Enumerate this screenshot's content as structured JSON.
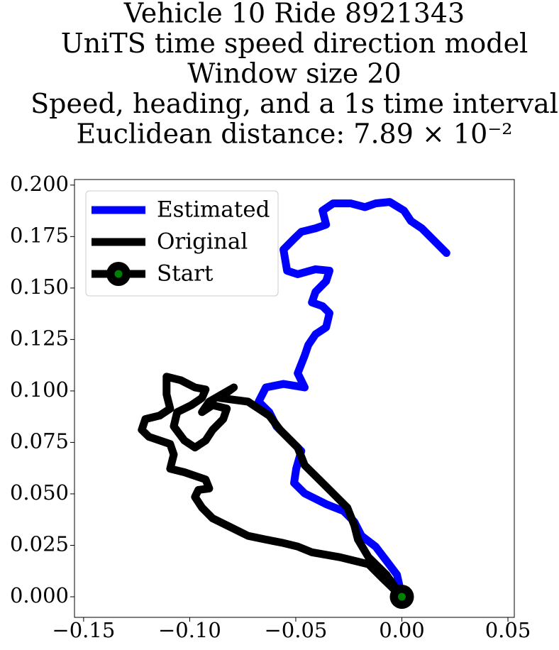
{
  "chart_data": {
    "type": "line",
    "title": [
      "Vehicle 10 Ride 8921343",
      "UniTS time speed direction model",
      "Window size 20",
      "Speed, heading, and a 1s time interval",
      "Euclidean distance: 7.89 × 10⁻²"
    ],
    "series": [
      {
        "name": "Estimated",
        "color": "#0000ff",
        "x": [
          0,
          -0.0023,
          -0.0073,
          -0.0124,
          -0.019,
          -0.0224,
          -0.0274,
          -0.0357,
          -0.0458,
          -0.0508,
          -0.0498,
          -0.0474,
          -0.0524,
          -0.0591,
          -0.0625,
          -0.0675,
          -0.0641,
          -0.0558,
          -0.0458,
          -0.0491,
          -0.0458,
          -0.0441,
          -0.0407,
          -0.0357,
          -0.0341,
          -0.0374,
          -0.0424,
          -0.0407,
          -0.0357,
          -0.0341,
          -0.0407,
          -0.0491,
          -0.0541,
          -0.0558,
          -0.0508,
          -0.0474,
          -0.0407,
          -0.0357,
          -0.0374,
          -0.0324,
          -0.024,
          -0.0174,
          -0.0124,
          -0.0057,
          0.001,
          0.0043,
          0.0094,
          0.016,
          0.021
        ],
        "y": [
          0,
          0.0107,
          0.0175,
          0.0244,
          0.0296,
          0.0364,
          0.0416,
          0.045,
          0.0502,
          0.0553,
          0.0622,
          0.0708,
          0.0759,
          0.0828,
          0.0897,
          0.0948,
          0.1017,
          0.1034,
          0.1017,
          0.1086,
          0.1172,
          0.1223,
          0.1275,
          0.1309,
          0.1378,
          0.1412,
          0.143,
          0.1481,
          0.1533,
          0.1584,
          0.1591,
          0.1567,
          0.1584,
          0.1687,
          0.1739,
          0.1773,
          0.179,
          0.1808,
          0.1876,
          0.1911,
          0.1911,
          0.1893,
          0.1911,
          0.1918,
          0.1876,
          0.1825,
          0.179,
          0.1722,
          0.167
        ]
      },
      {
        "name": "Original",
        "color": "#000000",
        "x": [
          0,
          -0.009,
          -0.0157,
          -0.0291,
          -0.0424,
          -0.0491,
          -0.0558,
          -0.0641,
          -0.0725,
          -0.0825,
          -0.0892,
          -0.0942,
          -0.0975,
          -0.0959,
          -0.0908,
          -0.0925,
          -0.1025,
          -0.1092,
          -0.1075,
          -0.1092,
          -0.1192,
          -0.1226,
          -0.1209,
          -0.1142,
          -0.1092,
          -0.1109,
          -0.1109,
          -0.1042,
          -0.0975,
          -0.0925,
          -0.0942,
          -0.0992,
          -0.1059,
          -0.1075,
          -0.1025,
          -0.0975,
          -0.0925,
          -0.0892,
          -0.0842,
          -0.0825,
          -0.0892,
          -0.0942,
          -0.0908,
          -0.0792,
          -0.0858,
          -0.0725,
          -0.0625,
          -0.0574,
          -0.0491,
          -0.0458,
          -0.0357,
          -0.0257,
          -0.0224,
          -0.0207,
          -0.0157,
          -0.0073,
          0
        ],
        "y": [
          0,
          0.0089,
          0.0158,
          0.0192,
          0.0216,
          0.0244,
          0.0261,
          0.0278,
          0.0296,
          0.0347,
          0.0381,
          0.0433,
          0.0485,
          0.0519,
          0.0526,
          0.057,
          0.0605,
          0.0622,
          0.0691,
          0.0742,
          0.0777,
          0.0811,
          0.0863,
          0.088,
          0.0914,
          0.0983,
          0.1069,
          0.1052,
          0.1017,
          0.1007,
          0.0966,
          0.0931,
          0.0897,
          0.0828,
          0.0759,
          0.0725,
          0.0759,
          0.0811,
          0.0863,
          0.0914,
          0.0931,
          0.0897,
          0.0948,
          0.1017,
          0.0966,
          0.0948,
          0.088,
          0.0811,
          0.0725,
          0.0639,
          0.0536,
          0.0433,
          0.0347,
          0.0278,
          0.0192,
          0.0107,
          0
        ]
      },
      {
        "name": "Start",
        "color": "#000000",
        "marker_color": "#008000",
        "x": [
          0
        ],
        "y": [
          0
        ]
      }
    ],
    "xlim": [
      -0.1543,
      0.053
    ],
    "ylim": [
      -0.01,
      0.2027
    ],
    "xticks": [
      {
        "value": -0.15,
        "label": "−0.15"
      },
      {
        "value": -0.1,
        "label": "−0.10"
      },
      {
        "value": -0.05,
        "label": "−0.05"
      },
      {
        "value": 0,
        "label": "0.00"
      },
      {
        "value": 0.05,
        "label": "0.05"
      }
    ],
    "yticks": [
      {
        "value": 0,
        "label": "0.000"
      },
      {
        "value": 0.025,
        "label": "0.025"
      },
      {
        "value": 0.05,
        "label": "0.050"
      },
      {
        "value": 0.075,
        "label": "0.075"
      },
      {
        "value": 0.1,
        "label": "0.100"
      },
      {
        "value": 0.125,
        "label": "0.125"
      },
      {
        "value": 0.15,
        "label": "0.150"
      },
      {
        "value": 0.175,
        "label": "0.175"
      },
      {
        "value": 0.2,
        "label": "0.200"
      }
    ],
    "legend": "upper left",
    "grid": false
  }
}
